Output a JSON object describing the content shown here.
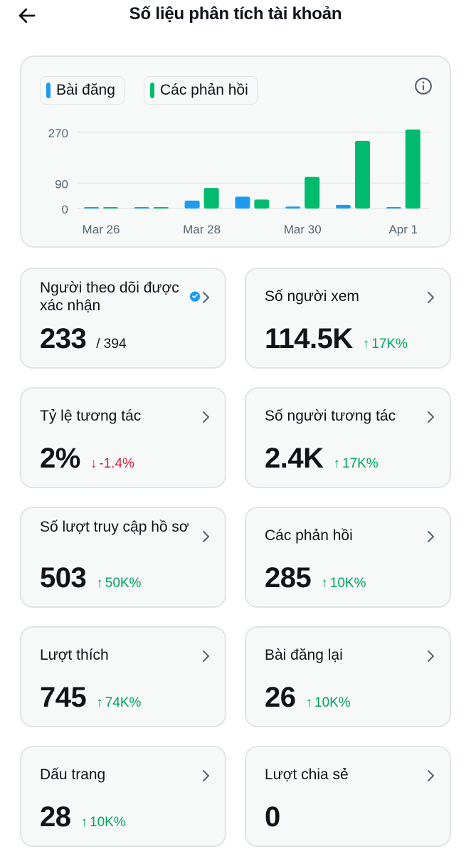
{
  "header": {
    "title": "Số liệu phân tích tài khoản"
  },
  "legend": {
    "posts": "Bài đăng",
    "replies": "Các phản hồi"
  },
  "colors": {
    "posts": "#1d9bf0",
    "replies": "#00ba6d",
    "up": "#00a35c",
    "down": "#d0243f"
  },
  "chart_data": {
    "type": "bar",
    "y_ticks": [
      "270",
      "90",
      "0"
    ],
    "y_tick_values": [
      270,
      90,
      0
    ],
    "x_tick_labels": [
      "Mar 26",
      "Mar 28",
      "Mar 30",
      "Apr 1"
    ],
    "categories": [
      "Mar 26",
      "Mar 27",
      "Mar 28",
      "Mar 29",
      "Mar 30",
      "Mar 31",
      "Apr 1"
    ],
    "series": [
      {
        "name": "Bài đăng",
        "values": [
          1,
          1,
          28,
          42,
          7,
          13,
          4
        ]
      },
      {
        "name": "Các phản hồi",
        "values": [
          2,
          2,
          73,
          32,
          112,
          240,
          280
        ]
      }
    ],
    "ylim": [
      0,
      300
    ],
    "grid": true,
    "legend_position": "top-left"
  },
  "stats": [
    {
      "label": "Người theo dõi được xác nhận",
      "value": "233",
      "sub": "/ 394",
      "change": "",
      "dir": "",
      "verified": true
    },
    {
      "label": "Số người xem",
      "value": "114.5K",
      "sub": "",
      "change": "17K%",
      "dir": "up"
    },
    {
      "label": "Tỷ lệ tương tác",
      "value": "2%",
      "sub": "",
      "change": "-1.4%",
      "dir": "down"
    },
    {
      "label": "Số người tương tác",
      "value": "2.4K",
      "sub": "",
      "change": "17K%",
      "dir": "up"
    },
    {
      "label": "Số lượt truy cập hồ sơ",
      "value": "503",
      "sub": "",
      "change": "50K%",
      "dir": "up"
    },
    {
      "label": "Các phản hồi",
      "value": "285",
      "sub": "",
      "change": "10K%",
      "dir": "up"
    },
    {
      "label": "Lượt thích",
      "value": "745",
      "sub": "",
      "change": "74K%",
      "dir": "up"
    },
    {
      "label": "Bài đăng lại",
      "value": "26",
      "sub": "",
      "change": "10K%",
      "dir": "up"
    },
    {
      "label": "Dấu trang",
      "value": "28",
      "sub": "",
      "change": "10K%",
      "dir": "up"
    },
    {
      "label": "Lượt chia sẻ",
      "value": "0",
      "sub": "",
      "change": "",
      "dir": ""
    }
  ]
}
